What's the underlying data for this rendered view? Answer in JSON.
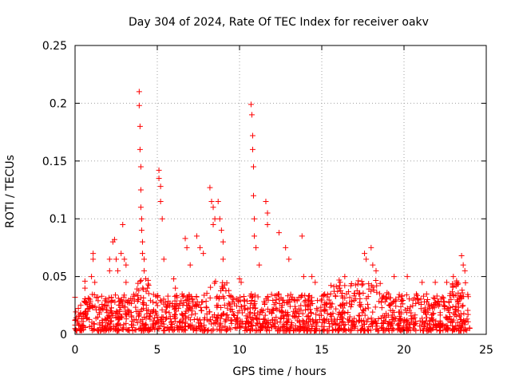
{
  "chart_data": {
    "type": "scatter",
    "title": "Day 304 of 2024, Rate Of TEC Index for receiver oakv",
    "xlabel": "GPS time / hours",
    "ylabel": "ROTI / TECUs",
    "xlim": [
      0,
      25
    ],
    "ylim": [
      0,
      0.25
    ],
    "x_ticks": [
      0,
      5,
      10,
      15,
      20,
      25
    ],
    "x_tick_labels": [
      "0",
      "5",
      "10",
      "15",
      "20",
      "25"
    ],
    "y_ticks": [
      0,
      0.05,
      0.1,
      0.15,
      0.2,
      0.25
    ],
    "y_tick_labels": [
      "0",
      "0.05",
      "0.1",
      "0.15",
      "0.2",
      "0.25"
    ],
    "grid": true,
    "marker": "+",
    "color": "#ff0000",
    "series": [
      {
        "name": "ROTI",
        "x": [
          0.0,
          0.0,
          0.0,
          0.0,
          0.6,
          0.6,
          1.0,
          1.1,
          1.1,
          1.2,
          2.1,
          2.1,
          2.3,
          2.4,
          2.5,
          2.6,
          2.8,
          2.9,
          3.0,
          3.1,
          3.1,
          3.9,
          3.9,
          3.95,
          3.95,
          4.0,
          4.0,
          4.0,
          4.05,
          4.05,
          4.1,
          4.1,
          4.2,
          4.2,
          4.3,
          4.4,
          5.1,
          5.1,
          5.2,
          5.2,
          5.3,
          5.4,
          6.0,
          6.1,
          6.7,
          6.8,
          7.0,
          7.4,
          7.6,
          7.8,
          8.2,
          8.3,
          8.4,
          8.4,
          8.5,
          8.7,
          8.8,
          8.9,
          9.0,
          9.0,
          10.0,
          10.1,
          10.7,
          10.75,
          10.8,
          10.8,
          10.85,
          10.85,
          10.9,
          10.9,
          11.0,
          11.2,
          11.6,
          11.7,
          11.7,
          12.4,
          12.8,
          13.0,
          13.8,
          13.9,
          14.4,
          14.6,
          16.4,
          17.6,
          17.7,
          18.0,
          18.1,
          18.3,
          19.4,
          20.2,
          21.1,
          21.9,
          22.6,
          23.0,
          23.2,
          23.5,
          23.6,
          23.7
        ],
        "y": [
          0.032,
          0.005,
          0.008,
          0.012,
          0.04,
          0.046,
          0.05,
          0.065,
          0.07,
          0.045,
          0.065,
          0.055,
          0.08,
          0.082,
          0.065,
          0.055,
          0.07,
          0.095,
          0.065,
          0.06,
          0.045,
          0.21,
          0.198,
          0.18,
          0.16,
          0.145,
          0.125,
          0.11,
          0.1,
          0.09,
          0.08,
          0.07,
          0.065,
          0.055,
          0.048,
          0.04,
          0.142,
          0.135,
          0.128,
          0.115,
          0.1,
          0.065,
          0.048,
          0.04,
          0.083,
          0.075,
          0.06,
          0.085,
          0.075,
          0.07,
          0.127,
          0.115,
          0.11,
          0.095,
          0.1,
          0.115,
          0.1,
          0.09,
          0.08,
          0.065,
          0.048,
          0.045,
          0.199,
          0.19,
          0.172,
          0.16,
          0.145,
          0.12,
          0.1,
          0.085,
          0.075,
          0.06,
          0.115,
          0.105,
          0.095,
          0.088,
          0.075,
          0.065,
          0.085,
          0.05,
          0.05,
          0.045,
          0.05,
          0.07,
          0.065,
          0.075,
          0.06,
          0.055,
          0.05,
          0.05,
          0.045,
          0.045,
          0.045,
          0.05,
          0.045,
          0.068,
          0.06,
          0.055
        ]
      }
    ],
    "baseline_band": {
      "description_level_low": 0.003,
      "description_level_high": 0.035,
      "x_start": 0.0,
      "x_end": 24.0
    }
  }
}
